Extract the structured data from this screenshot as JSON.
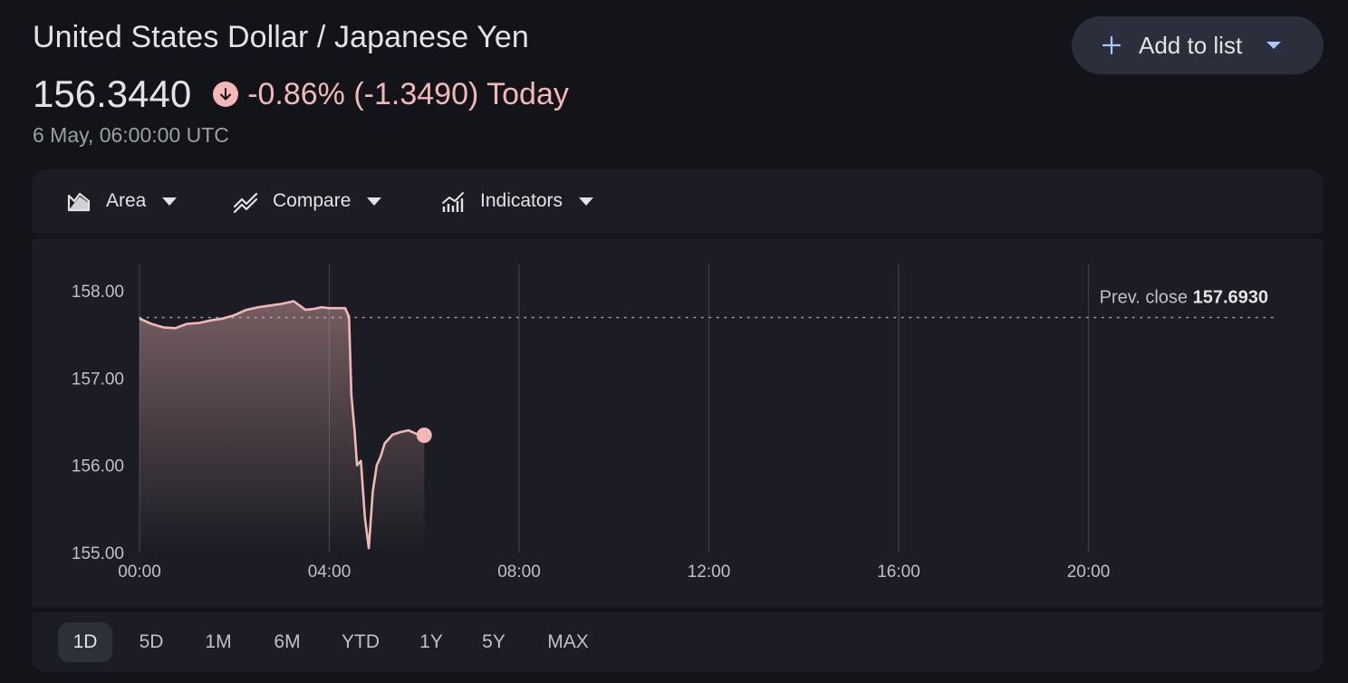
{
  "header": {
    "title": "United States Dollar / Japanese Yen",
    "price": "156.3440",
    "change": "-0.86% (-1.3490) Today",
    "timestamp": "6 May, 06:00:00 UTC"
  },
  "add_button": {
    "label": "Add to list"
  },
  "toolbar": {
    "area": "Area",
    "compare": "Compare",
    "indicators": "Indicators"
  },
  "colors": {
    "negative": "#f2b8b5",
    "background": "#131419",
    "card": "#1b1c24"
  },
  "chart_data": {
    "type": "area",
    "ylim": [
      155.0,
      158.3
    ],
    "xlim": [
      "00:00",
      "24:00"
    ],
    "y_ticks": [
      "158.00",
      "157.00",
      "156.00",
      "155.00"
    ],
    "x_ticks": [
      "00:00",
      "04:00",
      "08:00",
      "12:00",
      "16:00",
      "20:00"
    ],
    "prev_close_label": "Prev. close",
    "prev_close_value": "157.6930",
    "prev_close": 157.693,
    "grid": "vertical",
    "series": [
      {
        "x": [
          "00:00",
          "00:15",
          "00:30",
          "00:45",
          "01:00",
          "01:15",
          "01:30",
          "01:45",
          "02:00",
          "02:15",
          "02:30",
          "02:45",
          "03:00",
          "03:15",
          "03:30",
          "03:40",
          "03:50",
          "04:00",
          "04:20",
          "04:25",
          "04:28",
          "04:32",
          "04:35",
          "04:40",
          "04:45",
          "04:50",
          "04:55",
          "05:00",
          "05:05",
          "05:10",
          "05:15",
          "05:20",
          "05:30",
          "05:40",
          "05:50",
          "06:00"
        ],
        "y": [
          157.68,
          157.62,
          157.58,
          157.57,
          157.62,
          157.63,
          157.66,
          157.68,
          157.72,
          157.78,
          157.81,
          157.83,
          157.85,
          157.88,
          157.78,
          157.79,
          157.81,
          157.8,
          157.8,
          157.7,
          156.8,
          156.4,
          156.0,
          156.05,
          155.4,
          155.05,
          155.7,
          156.0,
          156.1,
          156.25,
          156.3,
          156.35,
          156.38,
          156.4,
          156.36,
          156.344
        ]
      }
    ]
  }
}
